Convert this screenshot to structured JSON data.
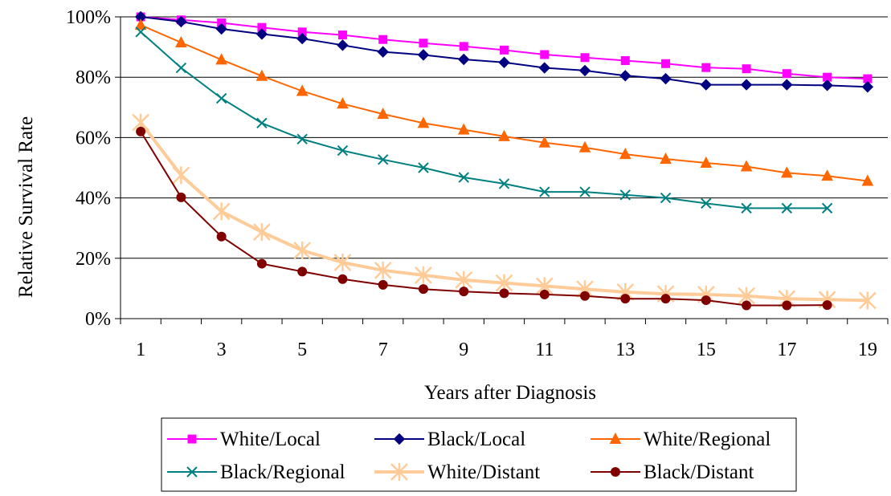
{
  "chart_data": {
    "type": "line",
    "title": "",
    "xlabel": "Years after Diagnosis",
    "ylabel": "Relative Survival Rate",
    "xlim": [
      1,
      19
    ],
    "ylim": [
      0,
      100
    ],
    "x_tick_labels": [
      "1",
      "3",
      "5",
      "7",
      "9",
      "11",
      "13",
      "15",
      "17",
      "19"
    ],
    "y_tick_labels": [
      "0%",
      "20%",
      "40%",
      "60%",
      "80%",
      "100%"
    ],
    "grid": "horizontal",
    "legend_position": "bottom",
    "series": [
      {
        "name": "White/Local",
        "color": "#FF00FF",
        "marker": "square",
        "x": [
          1,
          2,
          3,
          4,
          5,
          6,
          7,
          8,
          9,
          10,
          11,
          12,
          13,
          14,
          15,
          16,
          17,
          18,
          19
        ],
        "values": [
          100,
          99,
          98,
          96.5,
          95,
          94,
          92.5,
          91.3,
          90.2,
          89,
          87.5,
          86.5,
          85.5,
          84.5,
          83.2,
          82.8,
          81.2,
          80,
          79.5
        ]
      },
      {
        "name": "Black/Local",
        "color": "#000080",
        "marker": "diamond",
        "x": [
          1,
          2,
          3,
          4,
          5,
          6,
          7,
          8,
          9,
          10,
          11,
          12,
          13,
          14,
          15,
          16,
          17,
          18,
          19
        ],
        "values": [
          100,
          98.4,
          96,
          94.3,
          92.8,
          90.6,
          88.4,
          87.4,
          85.9,
          84.9,
          83.1,
          82.2,
          80.5,
          79.5,
          77.5,
          77.5,
          77.5,
          77.3,
          76.8
        ]
      },
      {
        "name": "White/Regional",
        "color": "#FF6600",
        "marker": "triangle",
        "x": [
          1,
          2,
          3,
          4,
          5,
          6,
          7,
          8,
          9,
          10,
          11,
          12,
          13,
          14,
          15,
          16,
          17,
          18,
          19
        ],
        "values": [
          97.3,
          91.5,
          85.8,
          80.4,
          75.4,
          71.2,
          67.8,
          64.8,
          62.6,
          60.4,
          58.3,
          56.7,
          54.5,
          52.9,
          51.6,
          50.4,
          48.3,
          47.3,
          45.6
        ]
      },
      {
        "name": "Black/Regional",
        "color": "#008080",
        "marker": "x",
        "x": [
          1,
          2,
          3,
          4,
          5,
          6,
          7,
          8,
          9,
          10,
          11,
          12,
          13,
          14,
          15,
          16,
          17,
          18
        ],
        "values": [
          95,
          83.1,
          73,
          64.8,
          59.5,
          55.7,
          52.7,
          50,
          46.8,
          44.7,
          42,
          42,
          41,
          40,
          38.2,
          36.6,
          36.6,
          36.6
        ]
      },
      {
        "name": "White/Distant",
        "color": "#FFCC99",
        "marker": "star",
        "x": [
          1,
          2,
          3,
          4,
          5,
          6,
          7,
          8,
          9,
          10,
          11,
          12,
          13,
          14,
          15,
          16,
          17,
          18,
          19
        ],
        "values": [
          65,
          47.5,
          35.5,
          28.7,
          22.6,
          18.6,
          16,
          14.4,
          12.8,
          11.8,
          10.8,
          9.8,
          8.8,
          8.2,
          8,
          7.5,
          6.6,
          6.3,
          6
        ]
      },
      {
        "name": "Black/Distant",
        "color": "#800000",
        "marker": "circle",
        "x": [
          1,
          2,
          3,
          4,
          5,
          6,
          7,
          8,
          9,
          10,
          11,
          12,
          13,
          14,
          15,
          16,
          17,
          18
        ],
        "values": [
          62,
          40.2,
          27.2,
          18.2,
          15.6,
          13.1,
          11.2,
          9.8,
          9,
          8.4,
          8,
          7.5,
          6.6,
          6.6,
          6.1,
          4.4,
          4.4,
          4.5
        ]
      }
    ]
  }
}
